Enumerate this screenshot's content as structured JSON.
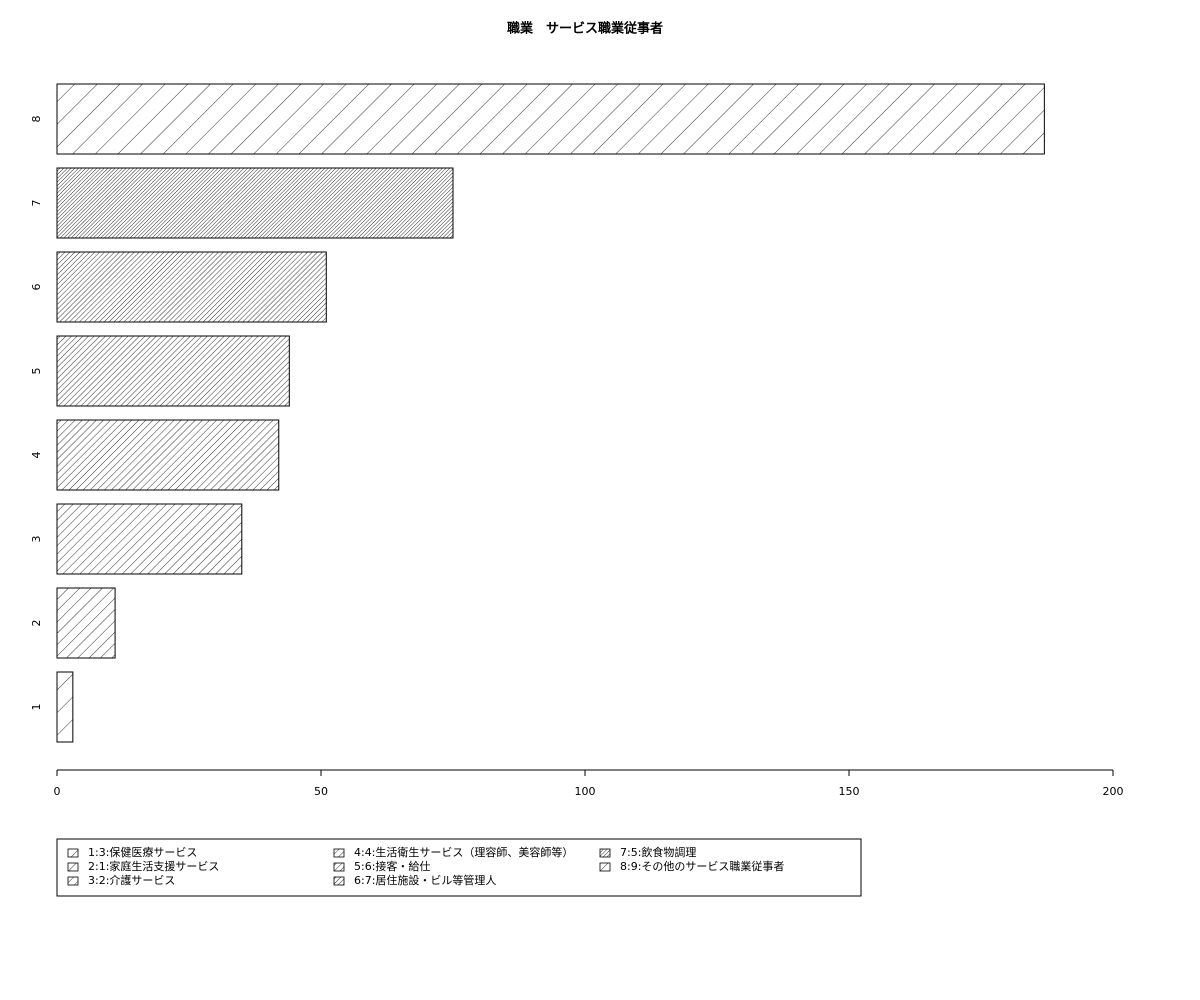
{
  "chart_data": {
    "type": "barh",
    "title": "職業　サービス職業従事者",
    "categories": [
      "1",
      "2",
      "3",
      "4",
      "5",
      "6",
      "7",
      "8"
    ],
    "values": [
      3,
      11,
      35,
      42,
      44,
      51,
      75,
      187
    ],
    "xlim": [
      0,
      200
    ],
    "xticks": [
      0,
      50,
      100,
      150,
      200
    ],
    "color": "#000000",
    "legend_labels": [
      "1:3:保健医療サービス",
      "2:1:家庭生活支援サービス",
      "3:2:介護サービス",
      "4:4:生活衛生サービス（理容師、美容師等）",
      "5:6:接客・給仕",
      "6:7:居住施設・ビル等管理人",
      "7:5:飲食物調理",
      "8:9:その他のサービス職業従事者"
    ],
    "legend_position": "bottom"
  }
}
